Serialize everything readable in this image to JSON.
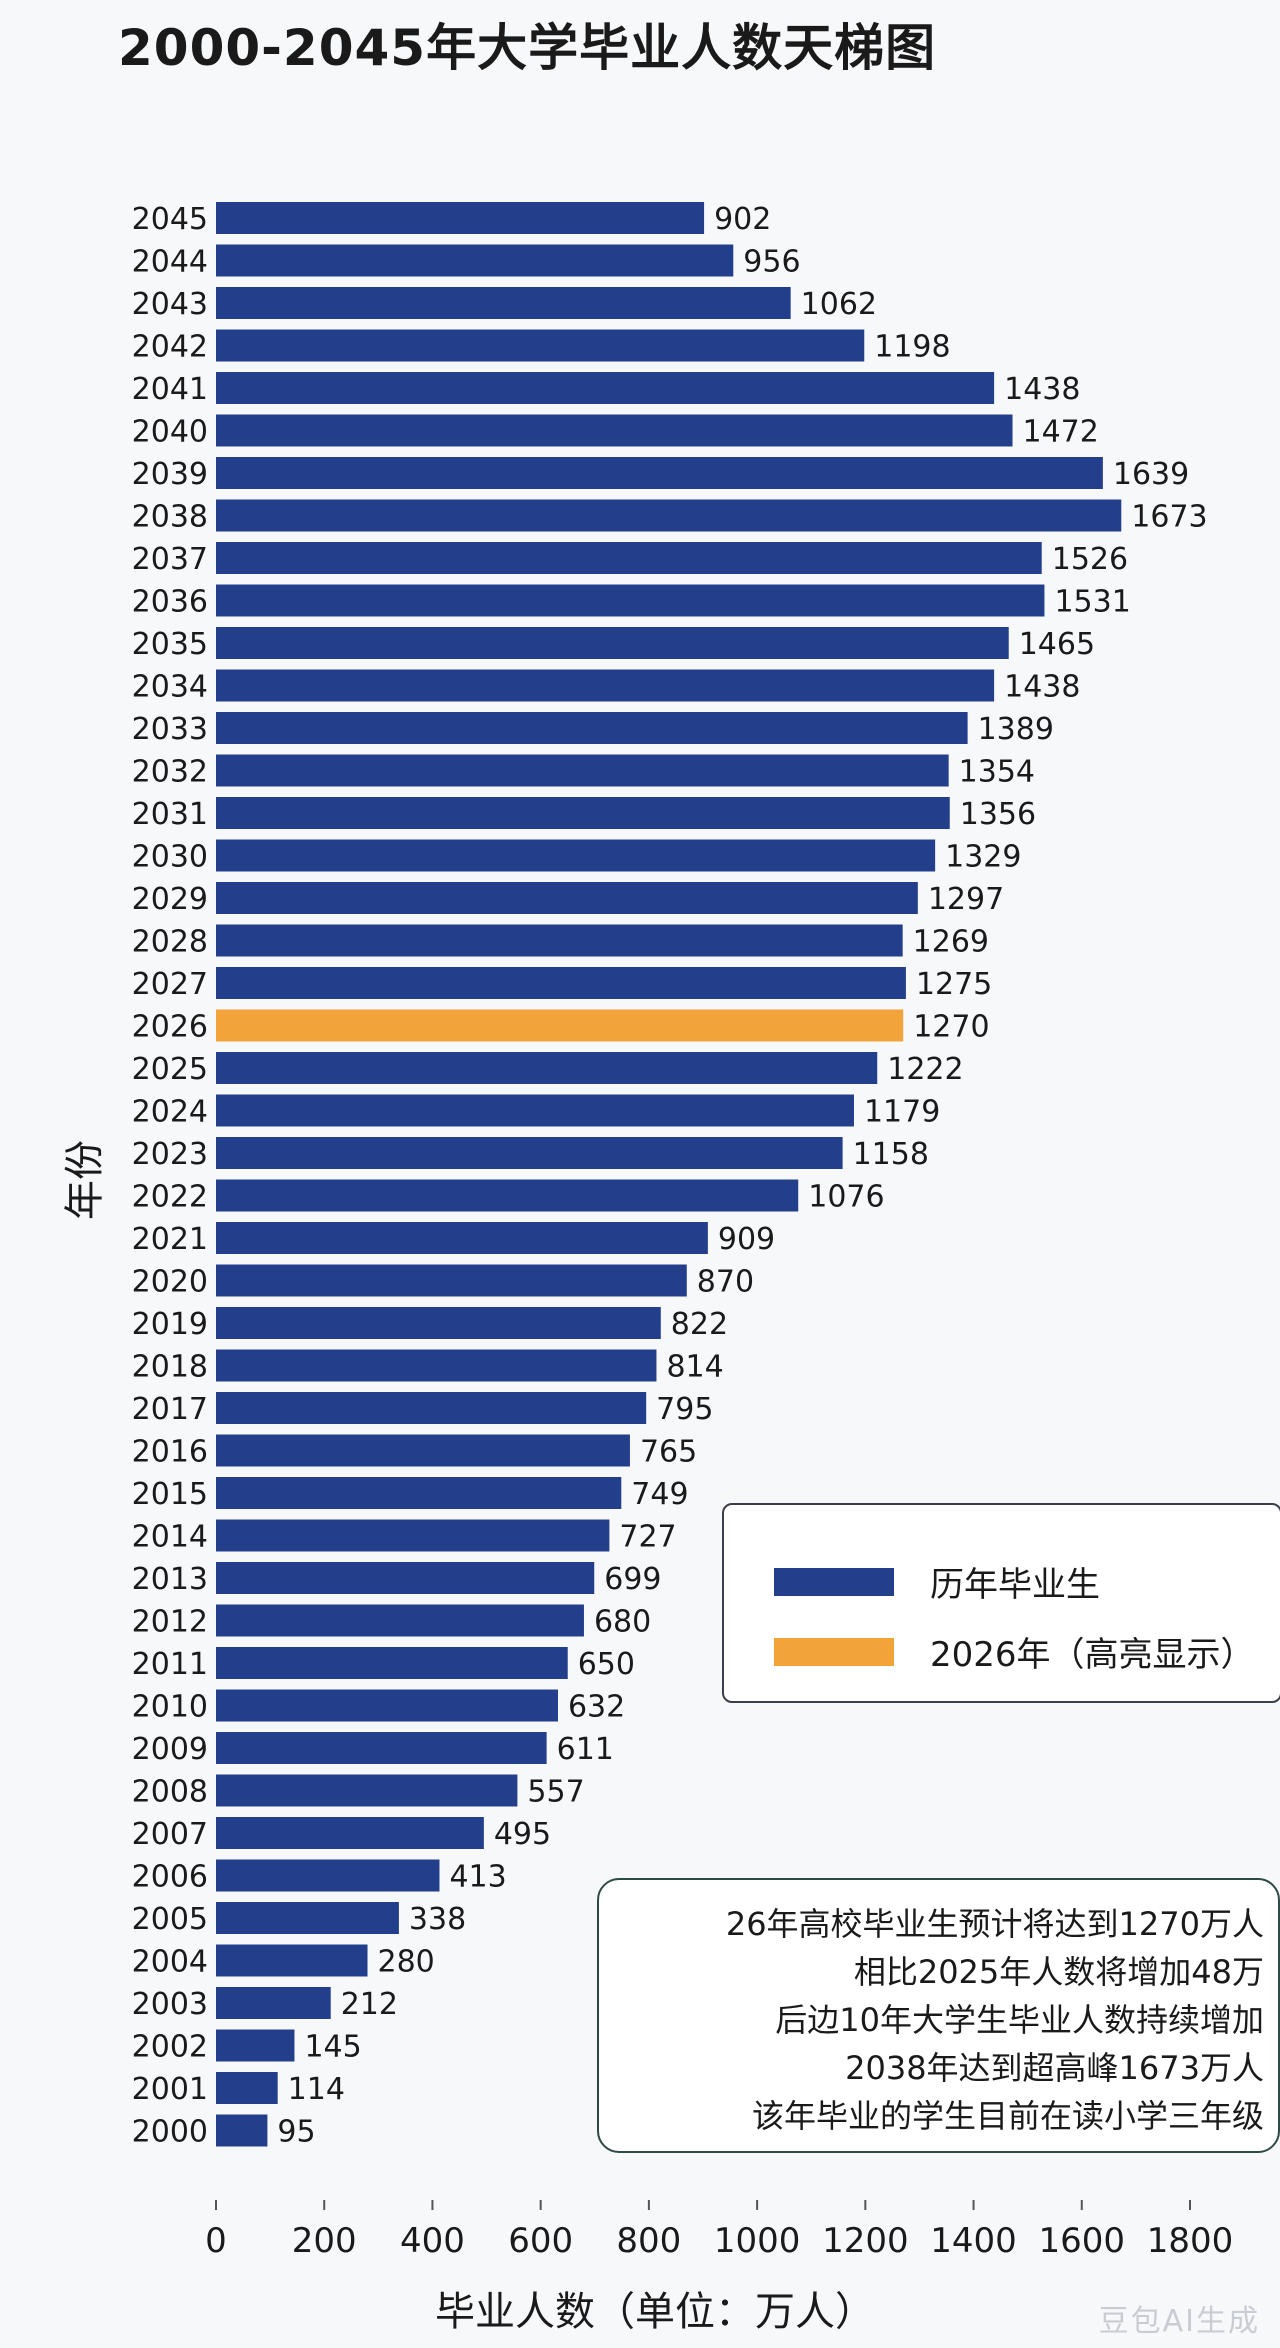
{
  "chart_data": {
    "type": "bar",
    "orientation": "horizontal",
    "title": "2000-2045年大学毕业人数天梯图",
    "xlabel": "毕业人数（单位：万人）",
    "ylabel": "年份",
    "xlim": [
      0,
      1800
    ],
    "xticks": [
      "0",
      "200",
      "400",
      "600",
      "800",
      "1000",
      "1200",
      "1400",
      "1600",
      "1800"
    ],
    "categories": [
      "2045",
      "2044",
      "2043",
      "2042",
      "2041",
      "2040",
      "2039",
      "2038",
      "2037",
      "2036",
      "2035",
      "2034",
      "2033",
      "2032",
      "2031",
      "2030",
      "2029",
      "2028",
      "2027",
      "2026",
      "2025",
      "2024",
      "2023",
      "2022",
      "2021",
      "2020",
      "2019",
      "2018",
      "2017",
      "2016",
      "2015",
      "2014",
      "2013",
      "2012",
      "2011",
      "2010",
      "2009",
      "2008",
      "2007",
      "2006",
      "2005",
      "2004",
      "2003",
      "2002",
      "2001",
      "2000"
    ],
    "values": [
      902,
      956,
      1062,
      1198,
      1438,
      1472,
      1639,
      1673,
      1526,
      1531,
      1465,
      1438,
      1389,
      1354,
      1356,
      1329,
      1297,
      1269,
      1275,
      1270,
      1222,
      1179,
      1158,
      1076,
      909,
      870,
      822,
      814,
      795,
      765,
      749,
      727,
      699,
      680,
      650,
      632,
      611,
      557,
      495,
      413,
      338,
      280,
      212,
      145,
      114,
      95
    ],
    "highlight_category": "2026",
    "grid": false,
    "legend_placement": "right",
    "legend": [
      {
        "label": "历年毕业生",
        "color": "#233f8c"
      },
      {
        "label": "2026年（高亮显示）",
        "color": "#f2a33a"
      }
    ]
  },
  "colors": {
    "bar": "#233f8c",
    "highlight": "#f2a33a"
  },
  "note": {
    "lines": [
      "26年高校毕业生预计将达到1270万人",
      "相比2025年人数将增加48万",
      "后边10年大学生毕业人数持续增加",
      "2038年达到超高峰1673万人",
      "该年毕业的学生目前在读小学三年级"
    ]
  },
  "watermark": "豆包AI生成"
}
